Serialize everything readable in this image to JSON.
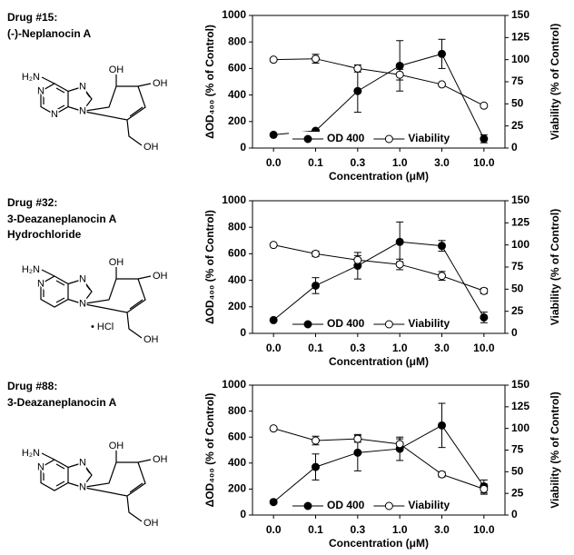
{
  "drugs": [
    {
      "label": "Drug #15:",
      "name": [
        "(-)-Neplanocin A"
      ],
      "atoms": [
        "H₂N",
        "N",
        "N",
        "N",
        "N",
        "OH",
        "OH",
        "OH"
      ]
    },
    {
      "label": "Drug #32:",
      "name": [
        "3-Deazaneplanocin A",
        "Hydrochloride"
      ],
      "atoms": [
        "H₂N",
        "N",
        "N",
        "N",
        "• HCl",
        "OH",
        "OH",
        "OH"
      ]
    },
    {
      "label": "Drug #88:",
      "name": [
        "3-Deazaneplanocin A"
      ],
      "atoms": [
        "H₂N",
        "N",
        "N",
        "N",
        "OH",
        "OH",
        "OH"
      ]
    }
  ],
  "chart_data": [
    {
      "type": "line",
      "x_label": "Concentration (μM)",
      "y_label": "ΔOD₄₀₀ (% of Control)",
      "y2_label": "Viability (% of Control)",
      "categories": [
        "0.0",
        "0.1",
        "0.3",
        "1.0",
        "3.0",
        "10.0"
      ],
      "ylim": [
        0,
        1000
      ],
      "yticks": [
        0,
        200,
        400,
        600,
        800,
        1000
      ],
      "y2lim": [
        0,
        150
      ],
      "y2ticks": [
        0,
        25,
        50,
        75,
        100,
        125,
        150
      ],
      "legend": "lower center",
      "series": [
        {
          "name": "OD 400",
          "color": "#000000",
          "marker": "filled",
          "values": [
            100,
            130,
            430,
            620,
            710,
            70
          ],
          "errors": [
            0,
            0,
            160,
            190,
            110,
            30
          ]
        },
        {
          "name": "Viability",
          "color": "#000000",
          "marker": "open",
          "axis": "y2",
          "values": [
            100,
            101,
            90,
            83,
            72,
            48
          ],
          "errors": [
            0,
            5,
            4,
            6,
            0,
            0
          ]
        }
      ]
    },
    {
      "type": "line",
      "x_label": "Concentration (μM)",
      "y_label": "ΔOD₄₀₀ (% of Control)",
      "y2_label": "Viability (% of Control)",
      "categories": [
        "0.0",
        "0.1",
        "0.3",
        "1.0",
        "3.0",
        "10.0"
      ],
      "ylim": [
        0,
        1000
      ],
      "yticks": [
        0,
        200,
        400,
        600,
        800,
        1000
      ],
      "y2lim": [
        0,
        150
      ],
      "y2ticks": [
        0,
        25,
        50,
        75,
        100,
        125,
        150
      ],
      "legend": "lower center",
      "series": [
        {
          "name": "OD 400",
          "color": "#000000",
          "marker": "filled",
          "values": [
            100,
            360,
            510,
            690,
            660,
            120
          ],
          "errors": [
            0,
            60,
            100,
            150,
            40,
            40
          ]
        },
        {
          "name": "Viability",
          "color": "#000000",
          "marker": "open",
          "axis": "y2",
          "values": [
            100,
            90,
            83,
            78,
            65,
            48
          ],
          "errors": [
            0,
            3,
            5,
            6,
            5,
            3
          ]
        }
      ]
    },
    {
      "type": "line",
      "x_label": "Concentration (μM)",
      "y_label": "ΔOD₄₀₀ (% of Control)",
      "y2_label": "Viability (% of Control)",
      "categories": [
        "0.0",
        "0.1",
        "0.3",
        "1.0",
        "3.0",
        "10.0"
      ],
      "ylim": [
        0,
        1000
      ],
      "yticks": [
        0,
        200,
        400,
        600,
        800,
        1000
      ],
      "y2lim": [
        0,
        150
      ],
      "y2ticks": [
        0,
        25,
        50,
        75,
        100,
        125,
        150
      ],
      "legend": "lower center",
      "series": [
        {
          "name": "OD 400",
          "color": "#000000",
          "marker": "filled",
          "values": [
            100,
            370,
            480,
            510,
            690,
            220
          ],
          "errors": [
            0,
            100,
            140,
            90,
            170,
            50
          ]
        },
        {
          "name": "Viability",
          "color": "#000000",
          "marker": "open",
          "axis": "y2",
          "values": [
            100,
            86,
            88,
            82,
            47,
            30
          ],
          "errors": [
            0,
            5,
            4,
            6,
            3,
            6
          ]
        }
      ]
    }
  ]
}
